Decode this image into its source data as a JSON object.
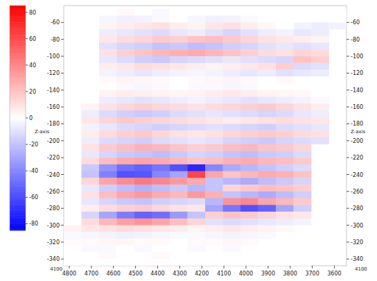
{
  "chart_data": {
    "type": "heatmap",
    "axis_title": "Z-axis",
    "annotations": [
      "4100",
      "4100"
    ],
    "xlim": [
      4825,
      3545
    ],
    "ylim": [
      -40,
      -348
    ],
    "xticks": [
      4800,
      4700,
      4600,
      4500,
      4400,
      4300,
      4200,
      4100,
      4000,
      3900,
      3800,
      3700,
      3600
    ],
    "yticks": [
      -60,
      -80,
      -100,
      -120,
      -140,
      -160,
      -180,
      -200,
      -220,
      -240,
      -260,
      -280,
      -300,
      -320,
      -340
    ],
    "grid": false,
    "x_edges": [
      4825,
      4745,
      4665,
      4585,
      4505,
      4425,
      4345,
      4265,
      4185,
      4105,
      4025,
      3945,
      3865,
      3785,
      3705,
      3625,
      3545
    ],
    "y_edges": [
      -44,
      -52,
      -60,
      -68,
      -76,
      -84,
      -92,
      -100,
      -108,
      -116,
      -124,
      -132,
      -140,
      -148,
      -156,
      -164,
      -172,
      -180,
      -188,
      -196,
      -204,
      -212,
      -220,
      -228,
      -236,
      -244,
      -252,
      -260,
      -268,
      -276,
      -284,
      -292,
      -300,
      -308,
      -316,
      -324,
      -332,
      -340,
      -348
    ],
    "cells": [
      [
        null,
        null,
        0,
        2,
        0,
        -2,
        0,
        0,
        0,
        0,
        0,
        0,
        0,
        0,
        0,
        0
      ],
      [
        null,
        null,
        -3,
        -5,
        -4,
        -2,
        0,
        -3,
        -5,
        -4,
        -2,
        0,
        0,
        0,
        0,
        0
      ],
      [
        null,
        null,
        4,
        6,
        8,
        10,
        6,
        4,
        8,
        10,
        6,
        3,
        0,
        -4,
        -6,
        -4
      ],
      [
        null,
        null,
        -6,
        -8,
        -10,
        -12,
        -8,
        -6,
        -10,
        -14,
        -10,
        -6,
        -4,
        -8,
        -6,
        null
      ],
      [
        null,
        null,
        8,
        12,
        14,
        18,
        16,
        20,
        22,
        18,
        14,
        10,
        8,
        6,
        4,
        null
      ],
      [
        null,
        null,
        -10,
        -14,
        -16,
        -20,
        -18,
        -22,
        -20,
        -16,
        -14,
        -10,
        -8,
        -10,
        -8,
        null
      ],
      [
        null,
        null,
        10,
        16,
        20,
        24,
        26,
        28,
        24,
        20,
        16,
        12,
        10,
        14,
        12,
        null
      ],
      [
        null,
        null,
        -8,
        -12,
        -16,
        -18,
        -14,
        -12,
        -10,
        -8,
        -10,
        -12,
        -14,
        20,
        16,
        null
      ],
      [
        null,
        null,
        6,
        8,
        12,
        10,
        8,
        6,
        4,
        6,
        8,
        10,
        16,
        -12,
        -10,
        null
      ],
      [
        null,
        null,
        -4,
        -6,
        -8,
        -6,
        -4,
        -3,
        -4,
        -6,
        -8,
        -6,
        -10,
        -8,
        -6,
        null
      ],
      [
        null,
        null,
        2,
        4,
        3,
        2,
        0,
        2,
        3,
        4,
        2,
        0,
        2,
        0,
        0,
        null
      ],
      [
        null,
        null,
        0,
        -2,
        -3,
        -2,
        0,
        -2,
        -2,
        -3,
        -2,
        0,
        0,
        0,
        0,
        null
      ],
      [
        null,
        null,
        4,
        6,
        5,
        4,
        3,
        4,
        6,
        8,
        6,
        4,
        3,
        2,
        0,
        null
      ],
      [
        null,
        null,
        -6,
        -8,
        -10,
        -8,
        -6,
        -4,
        -6,
        -8,
        -10,
        -8,
        -6,
        -4,
        -2,
        null
      ],
      [
        null,
        4,
        10,
        14,
        16,
        14,
        12,
        10,
        12,
        14,
        16,
        18,
        14,
        10,
        6,
        null
      ],
      [
        null,
        -6,
        -12,
        -16,
        -18,
        -16,
        -12,
        -10,
        -8,
        -10,
        -12,
        -14,
        -12,
        -8,
        -6,
        null
      ],
      [
        null,
        8,
        14,
        18,
        16,
        14,
        12,
        10,
        8,
        6,
        8,
        10,
        12,
        10,
        8,
        null
      ],
      [
        null,
        -4,
        -8,
        -12,
        -14,
        -16,
        -14,
        -12,
        -10,
        -12,
        -14,
        -16,
        -12,
        -10,
        -8,
        null
      ],
      [
        null,
        6,
        12,
        16,
        18,
        14,
        10,
        8,
        10,
        14,
        16,
        18,
        16,
        12,
        10,
        null
      ],
      [
        null,
        -6,
        -12,
        -14,
        -16,
        -12,
        -10,
        -8,
        -10,
        -14,
        -16,
        -18,
        -14,
        -12,
        -10,
        null
      ],
      [
        null,
        10,
        18,
        22,
        26,
        24,
        20,
        16,
        18,
        22,
        24,
        20,
        18,
        14,
        null,
        null
      ],
      [
        null,
        -8,
        -14,
        -18,
        -20,
        -22,
        -18,
        -14,
        -16,
        -20,
        -22,
        -18,
        -16,
        -12,
        null,
        null
      ],
      [
        null,
        12,
        22,
        28,
        30,
        28,
        24,
        20,
        22,
        26,
        28,
        24,
        22,
        18,
        null,
        null
      ],
      [
        null,
        -18,
        -36,
        -48,
        -52,
        -46,
        -58,
        -72,
        -40,
        -28,
        -24,
        -20,
        -16,
        -12,
        null,
        null
      ],
      [
        null,
        -20,
        -42,
        -58,
        -56,
        -40,
        -30,
        62,
        30,
        20,
        24,
        28,
        26,
        20,
        null,
        null
      ],
      [
        null,
        14,
        30,
        38,
        44,
        40,
        34,
        28,
        -20,
        -24,
        -28,
        -22,
        -18,
        -14,
        null,
        null
      ],
      [
        null,
        -8,
        -16,
        -22,
        -26,
        -22,
        -18,
        -24,
        -20,
        14,
        18,
        22,
        20,
        16,
        null,
        null
      ],
      [
        null,
        10,
        22,
        30,
        34,
        28,
        24,
        34,
        26,
        -20,
        -24,
        -28,
        -22,
        -16,
        null,
        null
      ],
      [
        null,
        -8,
        -14,
        -18,
        -20,
        -16,
        -14,
        -12,
        -24,
        36,
        40,
        30,
        24,
        18,
        null,
        null
      ],
      [
        null,
        6,
        12,
        16,
        18,
        14,
        10,
        8,
        -30,
        -46,
        -58,
        -52,
        -30,
        -16,
        null,
        null
      ],
      [
        null,
        -14,
        -30,
        -44,
        -52,
        -48,
        -34,
        -20,
        16,
        20,
        18,
        14,
        10,
        8,
        null,
        null
      ],
      [
        null,
        12,
        24,
        32,
        36,
        30,
        22,
        14,
        -10,
        -12,
        -10,
        -8,
        -6,
        -4,
        null,
        null
      ],
      [
        4,
        8,
        10,
        12,
        10,
        8,
        6,
        4,
        6,
        8,
        6,
        4,
        2,
        0,
        null,
        null
      ],
      [
        -2,
        -3,
        -4,
        -5,
        -4,
        -3,
        -2,
        -2,
        -3,
        -4,
        -3,
        -2,
        0,
        0,
        null,
        null
      ],
      [
        2,
        2,
        3,
        3,
        2,
        2,
        0,
        2,
        2,
        3,
        2,
        0,
        0,
        0,
        null,
        null
      ],
      [
        0,
        -2,
        -2,
        0,
        -2,
        0,
        0,
        -2,
        0,
        -2,
        0,
        0,
        0,
        0,
        null,
        null
      ],
      [
        0,
        0,
        2,
        0,
        0,
        2,
        0,
        0,
        0,
        0,
        0,
        0,
        0,
        0,
        null,
        null
      ],
      [
        0,
        0,
        0,
        0,
        0,
        0,
        0,
        0,
        0,
        0,
        0,
        0,
        0,
        0,
        null,
        null
      ]
    ],
    "colorbar": {
      "range": [
        -85,
        85
      ],
      "ticks": [
        80,
        60,
        40,
        20,
        0,
        -20,
        -40,
        -60,
        -80
      ]
    }
  }
}
